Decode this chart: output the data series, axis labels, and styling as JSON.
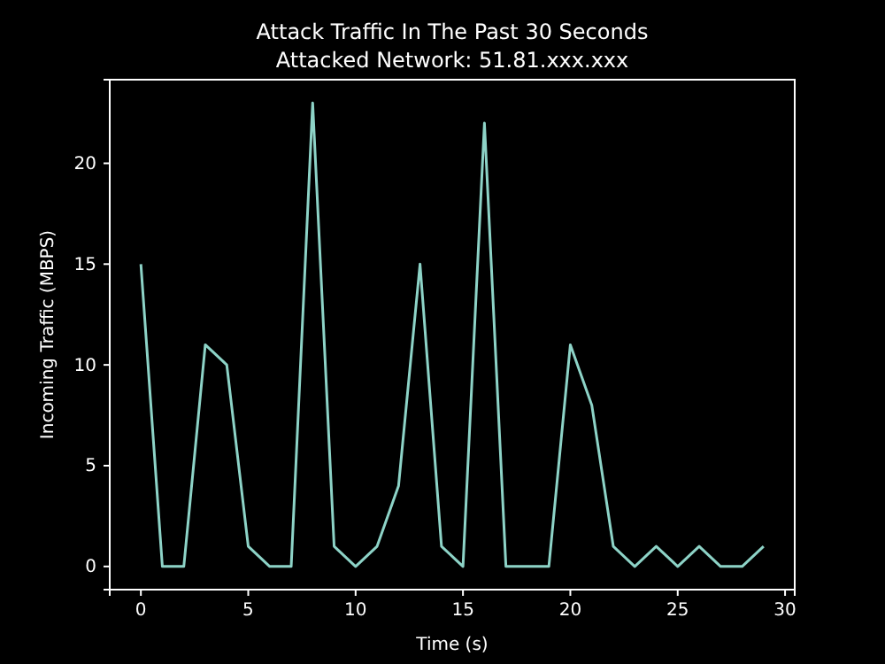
{
  "chart_data": {
    "type": "line",
    "title": "Attack Traffic In The Past 30 Seconds",
    "subtitle": "Attacked Network: 51.81.xxx.xxx",
    "xlabel": "Time (s)",
    "ylabel": "Incoming Traffic (MBPS)",
    "x": [
      0,
      1,
      2,
      3,
      4,
      5,
      6,
      7,
      8,
      9,
      10,
      11,
      12,
      13,
      14,
      15,
      16,
      17,
      18,
      19,
      20,
      21,
      22,
      23,
      24,
      25,
      26,
      27,
      28,
      29
    ],
    "series": [
      {
        "color": "#8dd3c7",
        "values": [
          15,
          0,
          0,
          11,
          10,
          1,
          0,
          0,
          23,
          1,
          0,
          1,
          4,
          15,
          1,
          0,
          22,
          0,
          0,
          0,
          11,
          8,
          1,
          0,
          1,
          0,
          1,
          0,
          0,
          1
        ]
      }
    ],
    "xlim": [
      -1.45,
      30.45
    ],
    "ylim": [
      -1.15,
      24.15
    ],
    "xticks": [
      0,
      5,
      10,
      15,
      20,
      25,
      30
    ],
    "yticks": [
      0,
      5,
      10,
      15,
      20
    ],
    "grid": false,
    "marker": "none",
    "line_style": "solid"
  }
}
